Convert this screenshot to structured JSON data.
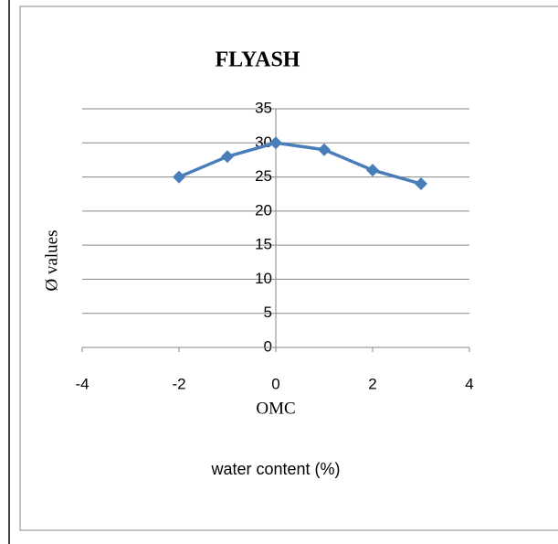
{
  "chart_data": {
    "type": "line",
    "title": "FLYASH",
    "annotation": "OMC",
    "x_label": "water content (%)",
    "y_label": "Ø values",
    "x": [
      -2,
      -1,
      0,
      1,
      2,
      3
    ],
    "series": [
      {
        "name": "Ø",
        "color": "#4a7ebb",
        "values": [
          25,
          28,
          30,
          29,
          26,
          24
        ]
      }
    ],
    "xlim": [
      -4,
      4
    ],
    "xticks": [
      -4,
      -2,
      0,
      2,
      4
    ],
    "ylim": [
      0,
      35
    ],
    "yticks": [
      0,
      5,
      10,
      15,
      20,
      25,
      30,
      35
    ],
    "grid": true
  }
}
